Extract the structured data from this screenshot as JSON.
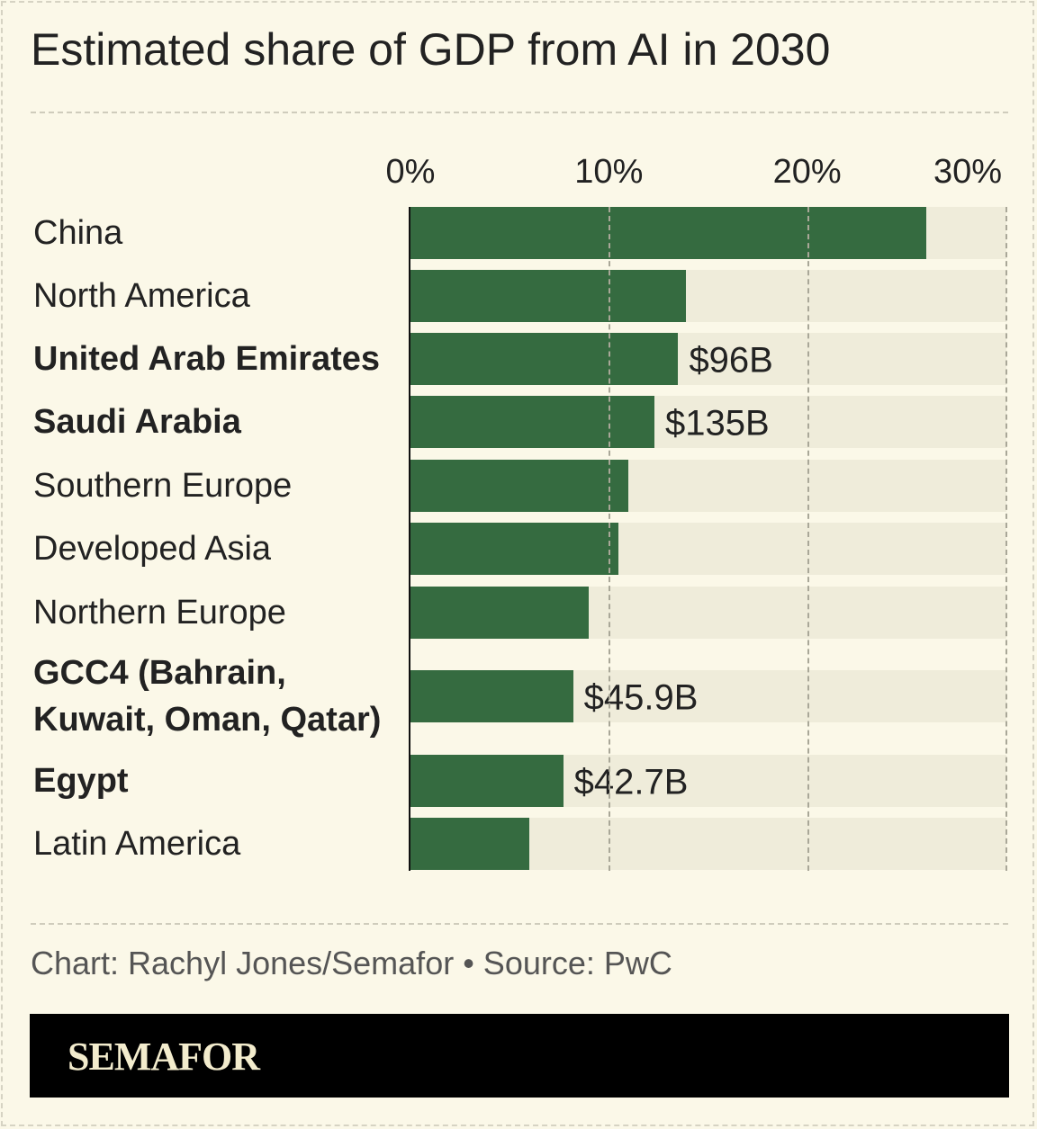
{
  "chart_data": {
    "type": "bar",
    "orientation": "horizontal",
    "title": "Estimated share of GDP from AI in 2030",
    "xlim": [
      0,
      30
    ],
    "x_ticks": [
      "0%",
      "10%",
      "20%",
      "30%"
    ],
    "grid": true,
    "categories": [
      "China",
      "North America",
      "United Arab Emirates",
      "Saudi Arabia",
      "Southern Europe",
      "Developed Asia",
      "Northern Europe",
      "GCC4 (Bahrain, Kuwait, Oman, Qatar)",
      "Egypt",
      "Latin America"
    ],
    "values": [
      26.0,
      13.9,
      13.5,
      12.3,
      11.0,
      10.5,
      9.0,
      8.2,
      7.7,
      6.0
    ],
    "bold": [
      false,
      false,
      true,
      true,
      false,
      false,
      false,
      true,
      true,
      false
    ],
    "data_labels": [
      "",
      "",
      "$96B",
      "$135B",
      "",
      "",
      "",
      "$45.9B",
      "$42.7B",
      ""
    ],
    "colors": {
      "bar": "#356b40",
      "track": "#efecda",
      "background": "#fbf8e8"
    }
  },
  "credit": "Chart: Rachyl Jones/Semafor • Source: PwC",
  "logo": "SEMAFOR"
}
